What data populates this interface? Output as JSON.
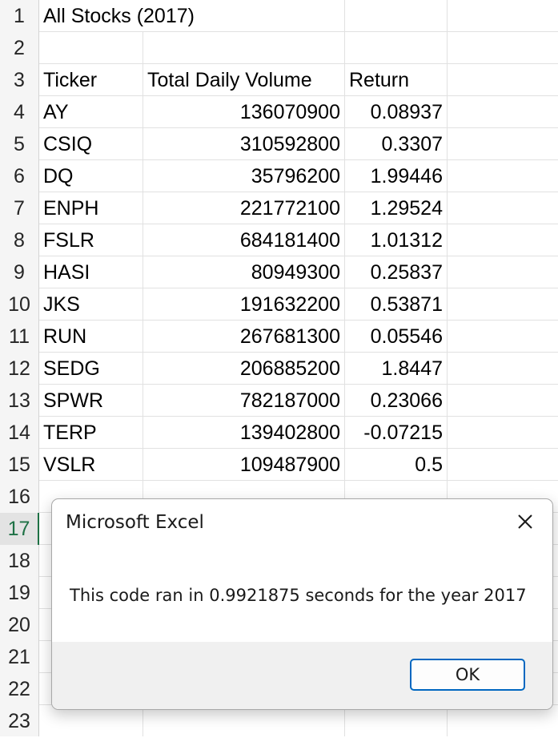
{
  "sheet": {
    "title": "All Stocks (2017)",
    "headers": {
      "ticker": "Ticker",
      "volume": "Total Daily Volume",
      "return": "Return"
    },
    "row_numbers": [
      "1",
      "2",
      "3",
      "4",
      "5",
      "6",
      "7",
      "8",
      "9",
      "10",
      "11",
      "12",
      "13",
      "14",
      "15",
      "16",
      "17",
      "18",
      "19",
      "20",
      "21",
      "22",
      "23"
    ],
    "active_row": "17",
    "rows": [
      {
        "ticker": "AY",
        "volume": "136070900",
        "return": "0.08937"
      },
      {
        "ticker": "CSIQ",
        "volume": "310592800",
        "return": "0.3307"
      },
      {
        "ticker": "DQ",
        "volume": "35796200",
        "return": "1.99446"
      },
      {
        "ticker": "ENPH",
        "volume": "221772100",
        "return": "1.29524"
      },
      {
        "ticker": "FSLR",
        "volume": "684181400",
        "return": "1.01312"
      },
      {
        "ticker": "HASI",
        "volume": "80949300",
        "return": "0.25837"
      },
      {
        "ticker": "JKS",
        "volume": "191632200",
        "return": "0.53871"
      },
      {
        "ticker": "RUN",
        "volume": "267681300",
        "return": "0.05546"
      },
      {
        "ticker": "SEDG",
        "volume": "206885200",
        "return": "1.8447"
      },
      {
        "ticker": "SPWR",
        "volume": "782187000",
        "return": "0.23066"
      },
      {
        "ticker": "TERP",
        "volume": "139402800",
        "return": "-0.07215"
      },
      {
        "ticker": "VSLR",
        "volume": "109487900",
        "return": "0.5"
      }
    ]
  },
  "dialog": {
    "title": "Microsoft Excel",
    "message": "This code ran in 0.9921875 seconds for the year 2017",
    "ok_label": "OK",
    "close_icon": "close-icon"
  },
  "colors": {
    "accent_green": "#1e7145",
    "button_border": "#0067c0"
  }
}
